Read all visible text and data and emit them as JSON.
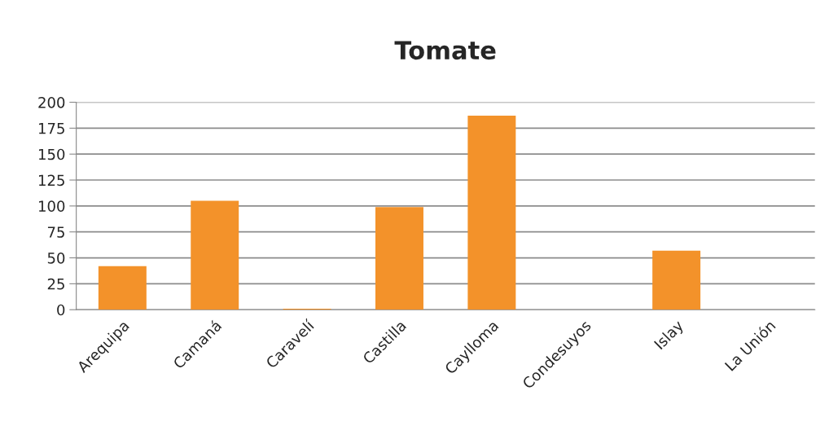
{
  "chart_data": {
    "type": "bar",
    "title": "Tomate",
    "categories": [
      "Arequipa",
      "Camaná",
      "Caravelí",
      "Castilla",
      "Caylloma",
      "Condesuyos",
      "Islay",
      "La Unión"
    ],
    "values": [
      42,
      105,
      1,
      99,
      187,
      0,
      57,
      0
    ],
    "color": "#f3922a",
    "ylim": [
      0,
      200
    ],
    "yticks": [
      0,
      25,
      50,
      75,
      100,
      125,
      150,
      175,
      200
    ],
    "grid": "y",
    "legend": false
  }
}
